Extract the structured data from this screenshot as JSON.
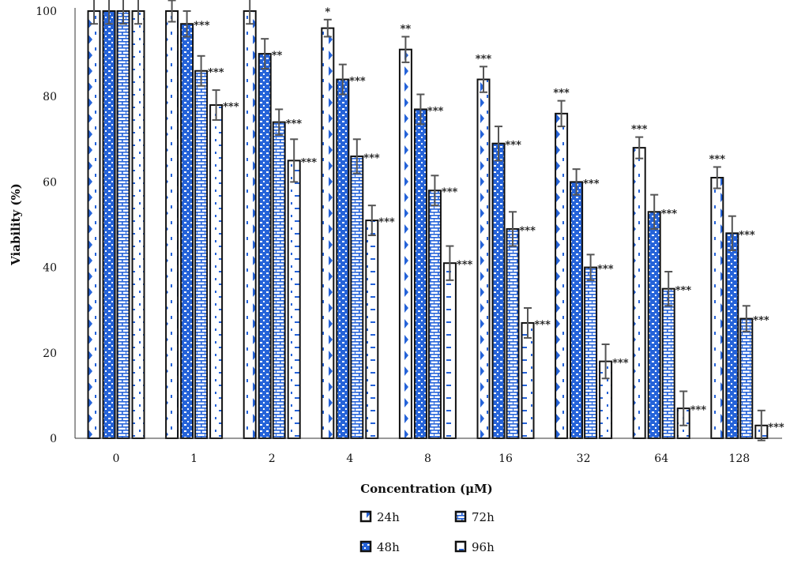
{
  "chart_data": {
    "type": "bar",
    "title": "",
    "xlabel": "Concentration (μM)",
    "ylabel": "Viability (%)",
    "ylim": [
      0,
      100
    ],
    "yticks": [
      "0",
      "20",
      "40",
      "60",
      "80",
      "100"
    ],
    "categories": [
      "0",
      "1",
      "2",
      "4",
      "8",
      "16",
      "32",
      "64",
      "128"
    ],
    "series": [
      {
        "name": "24h",
        "color": "#2563d9",
        "values": [
          100,
          100,
          100,
          96,
          91,
          84,
          76,
          68,
          61
        ],
        "errors": [
          3,
          2.5,
          3,
          2,
          3,
          3,
          3,
          2.5,
          2.5
        ],
        "sig": [
          "",
          "",
          "",
          "*",
          "**",
          "***",
          "***",
          "***",
          "***"
        ]
      },
      {
        "name": "48h",
        "color": "#2563d9",
        "values": [
          100,
          97,
          90,
          84,
          77,
          69,
          60,
          53,
          48
        ],
        "errors": [
          3,
          3,
          3.5,
          3.5,
          3.5,
          4,
          3,
          4,
          4
        ],
        "sig": [
          "",
          "***",
          "**",
          "***",
          "***",
          "***",
          "***",
          "***",
          "***"
        ]
      },
      {
        "name": "72h",
        "color": "#2563d9",
        "values": [
          100,
          86,
          74,
          66,
          58,
          49,
          40,
          35,
          28
        ],
        "errors": [
          3,
          3.5,
          3,
          4,
          3.5,
          4,
          3,
          4,
          3
        ],
        "sig": [
          "",
          "***",
          "***",
          "***",
          "***",
          "***",
          "***",
          "***",
          "***"
        ]
      },
      {
        "name": "96h",
        "color": "#2563d9",
        "values": [
          100,
          78,
          65,
          51,
          41,
          27,
          18,
          7,
          3
        ],
        "errors": [
          3,
          3.5,
          5,
          3.5,
          4,
          3.5,
          4,
          4,
          3.5
        ],
        "sig": [
          "",
          "***",
          "***",
          "***",
          "***",
          "***",
          "***",
          "***",
          "***"
        ]
      }
    ],
    "legend": "bottom-center",
    "grid": false
  }
}
